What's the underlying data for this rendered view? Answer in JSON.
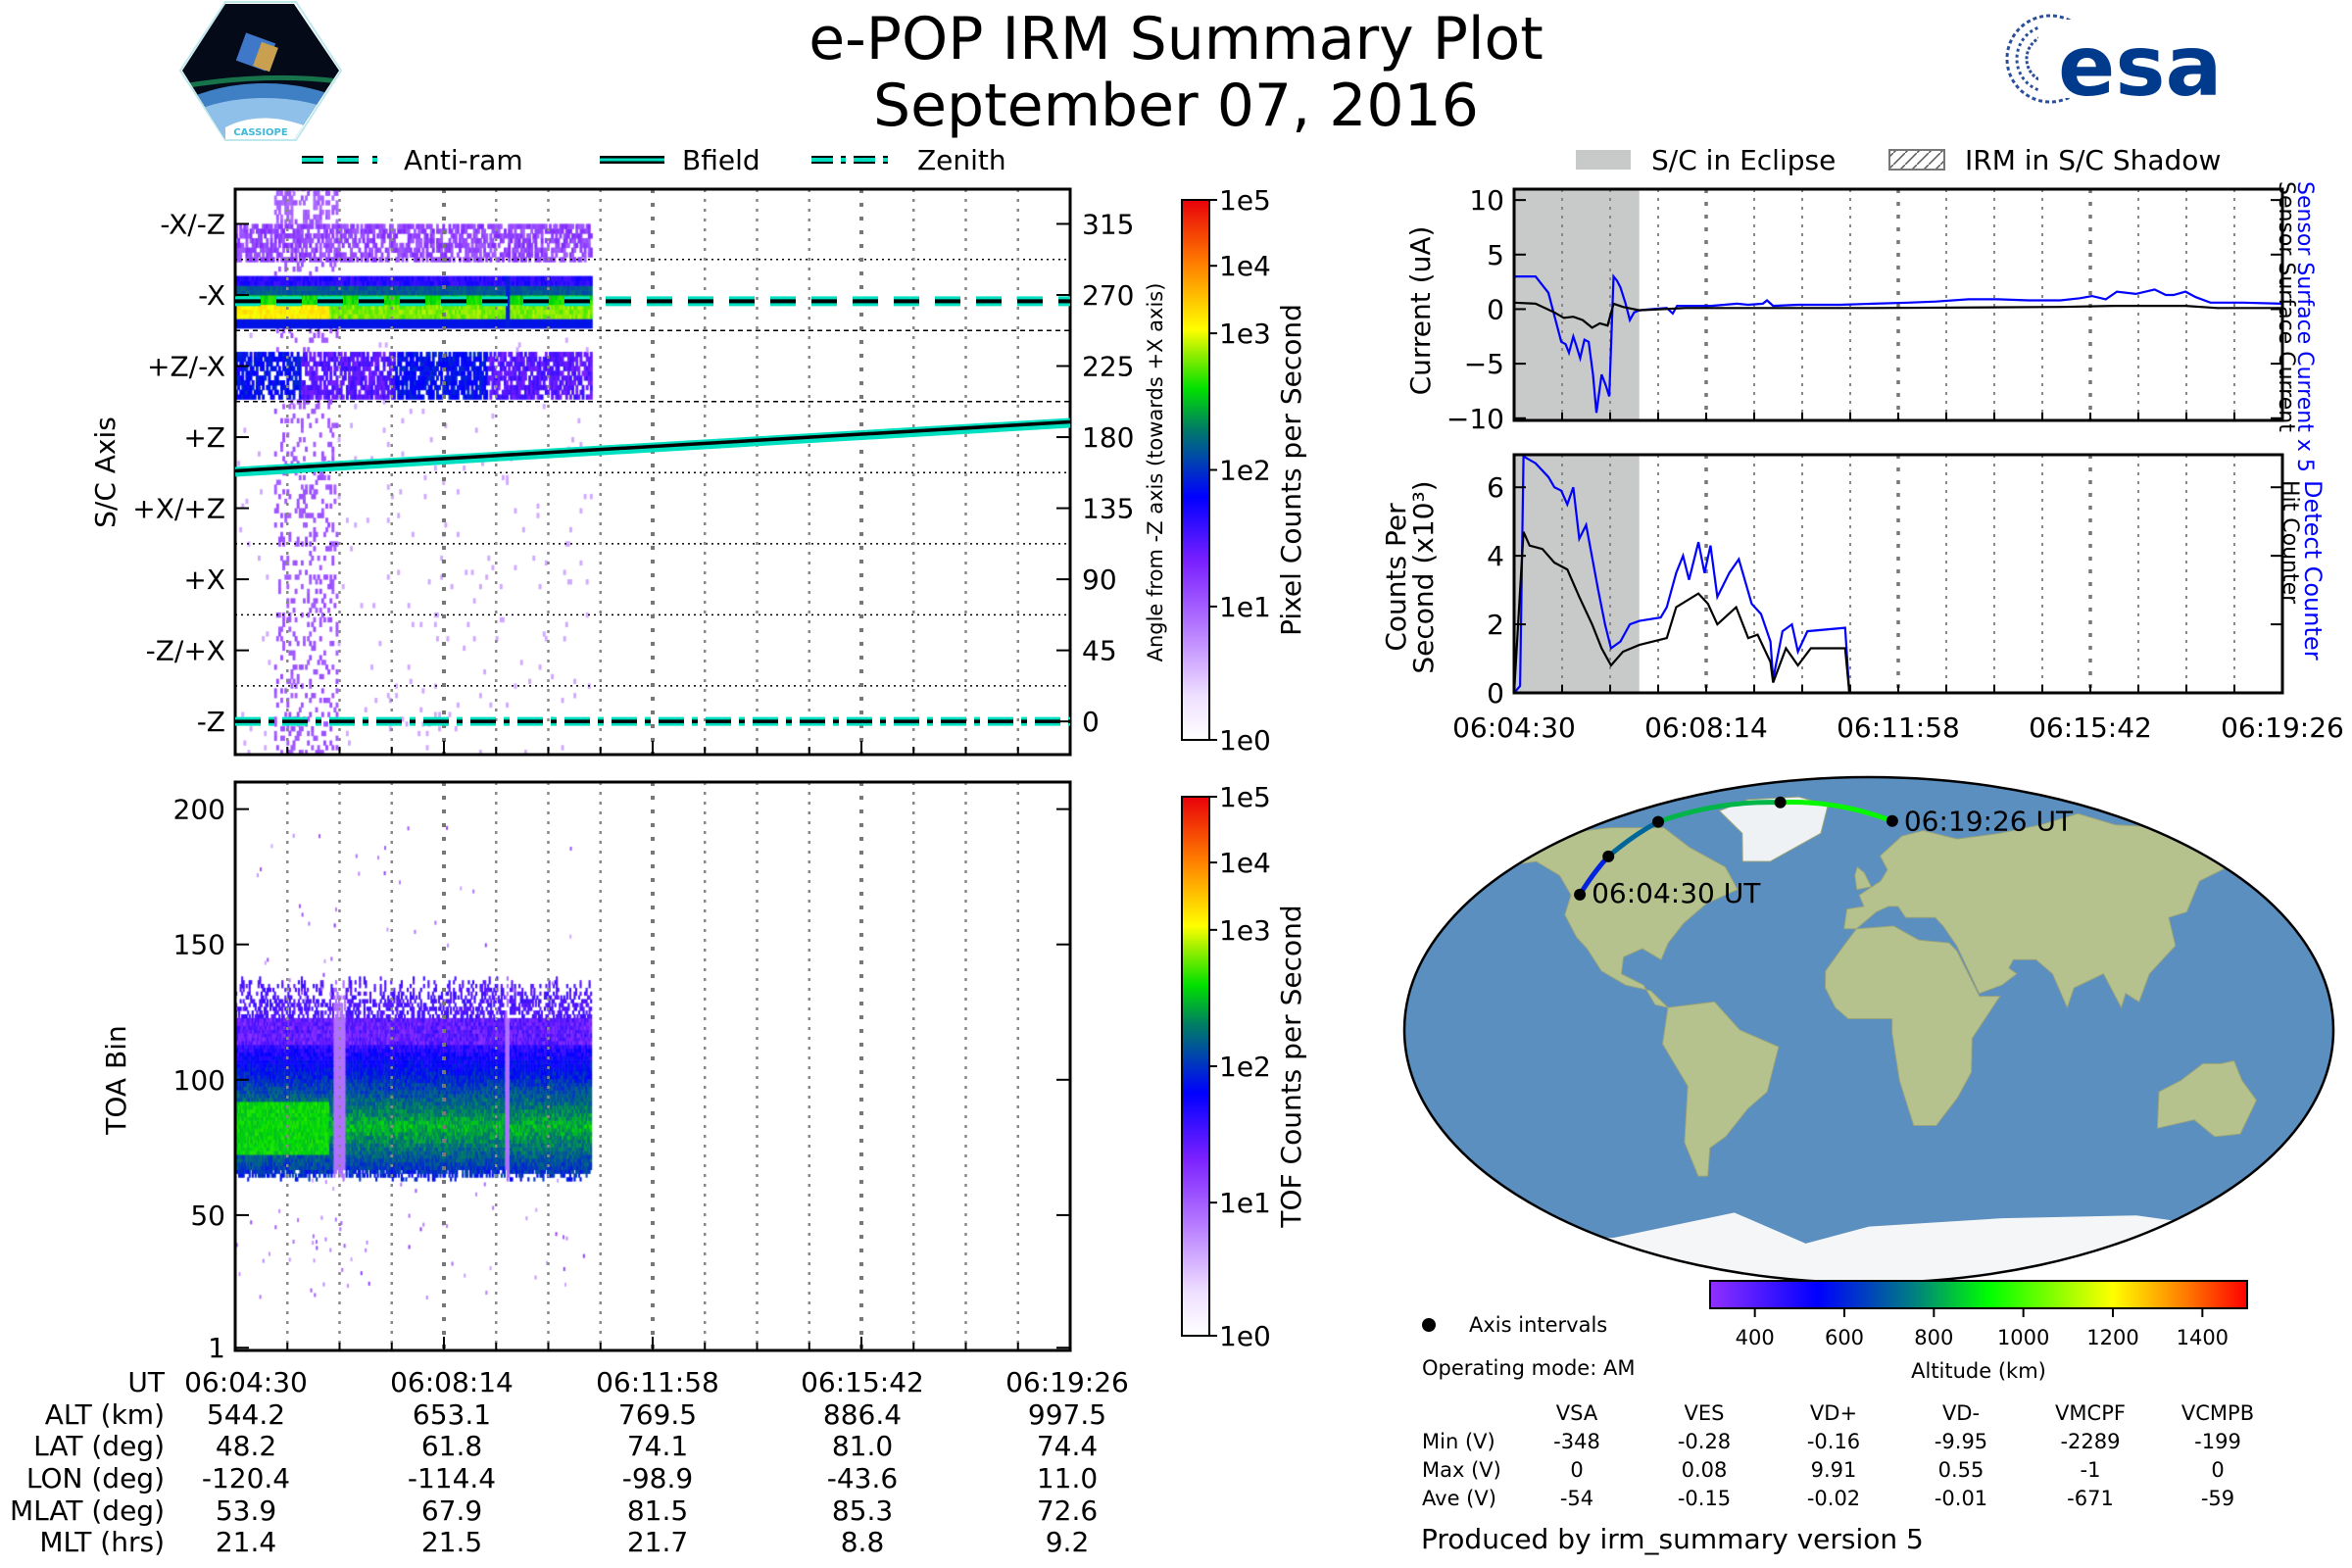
{
  "header": {
    "title": "e-POP IRM Summary Plot",
    "date": "September 07, 2016",
    "logo_left_text": "CASSIOPE",
    "logo_right_text": "esa"
  },
  "legend_left": [
    {
      "label": "Anti-ram",
      "style": "dashed"
    },
    {
      "label": "Bfield",
      "style": "solid"
    },
    {
      "label": "Zenith",
      "style": "dashdot"
    }
  ],
  "legend_right": [
    {
      "label": "S/C in Eclipse"
    },
    {
      "label": "IRM in S/C Shadow"
    }
  ],
  "colors": {
    "axis_line": "#00e0c0",
    "sensor_blue": "#0000ff",
    "eclipse_gray": "#c8cac9",
    "ocean": "#5a8fbf",
    "land": "#b6c28e"
  },
  "chart_data": [
    {
      "type": "heatmap",
      "name": "pixel-spectrogram",
      "ylabel": "S/C Axis",
      "y2label": "Angle from -Z axis (towards +X axis)",
      "yticks": [
        315,
        270,
        225,
        180,
        135,
        90,
        45,
        0
      ],
      "ytick_labels": [
        "-X/-Z",
        "-X",
        "+Z/-X",
        "+Z",
        "+X/+Z",
        "+X",
        "-Z/+X",
        "-Z"
      ],
      "y2tick_labels": [
        "315",
        "270",
        "225",
        "180",
        "135",
        "90",
        "45",
        "0"
      ],
      "ylim": [
        -21,
        337
      ],
      "xlim_s": [
        0,
        896
      ],
      "data_end_s": 381,
      "anti_ram_deg": 266,
      "bfield_deg": [
        [
          0,
          158
        ],
        [
          896,
          189
        ]
      ],
      "zenith_deg": 0,
      "colorbar": {
        "label": "Pixel Counts per Second",
        "ticks": [
          "1e5",
          "1e4",
          "1e3",
          "1e2",
          "1e1",
          "1e0"
        ]
      }
    },
    {
      "type": "heatmap",
      "name": "toa-spectrogram",
      "ylabel": "TOA Bin",
      "yticks": [
        200,
        150,
        100,
        50,
        1
      ],
      "ytick_labels": [
        "200",
        "150",
        "100",
        "50",
        "1"
      ],
      "ylim": [
        0,
        210
      ],
      "xlim_s": [
        0,
        896
      ],
      "data_end_s": 381,
      "colorbar": {
        "label": "TOF Counts per Second",
        "ticks": [
          "1e5",
          "1e4",
          "1e3",
          "1e2",
          "1e1",
          "1e0"
        ]
      }
    },
    {
      "type": "line",
      "name": "current",
      "ylabel": "Current (uA)",
      "ylim": [
        -10.2,
        11
      ],
      "yticks": [
        10,
        5,
        0,
        -5,
        -10
      ],
      "ytick_labels": [
        "10",
        "5",
        "0",
        "−5",
        "−10"
      ],
      "eclipse_s": [
        0,
        146
      ],
      "series": [
        {
          "name": "Sensor Surface Current x 5",
          "color": "#0000ff",
          "points": [
            [
              0,
              2.9
            ],
            [
              2,
              3
            ],
            [
              25,
              3
            ],
            [
              40,
              1.5
            ],
            [
              55,
              -3
            ],
            [
              60,
              -3.2
            ],
            [
              64,
              -4
            ],
            [
              69,
              -2.5
            ],
            [
              72,
              -3.2
            ],
            [
              77,
              -4.5
            ],
            [
              82,
              -2.8
            ],
            [
              87,
              -3
            ],
            [
              92,
              -6
            ],
            [
              96,
              -9.5
            ],
            [
              102,
              -6
            ],
            [
              107,
              -7
            ],
            [
              111,
              -8
            ],
            [
              116,
              3
            ],
            [
              120,
              2.6
            ],
            [
              124,
              2
            ],
            [
              130,
              0.5
            ],
            [
              135,
              -1
            ],
            [
              140,
              -0.3
            ],
            [
              146,
              -0.1
            ],
            [
              160,
              0
            ],
            [
              178,
              0.1
            ],
            [
              185,
              -0.4
            ],
            [
              190,
              0.3
            ],
            [
              200,
              0.3
            ],
            [
              230,
              0.3
            ],
            [
              260,
              0.5
            ],
            [
              273,
              0.4
            ],
            [
              290,
              0.5
            ],
            [
              295,
              0.8
            ],
            [
              302,
              0.3
            ],
            [
              331,
              0.4
            ],
            [
              380,
              0.4
            ],
            [
              419,
              0.5
            ],
            [
              460,
              0.6
            ],
            [
              492,
              0.7
            ],
            [
              530,
              0.9
            ],
            [
              564,
              0.9
            ],
            [
              600,
              0.8
            ],
            [
              637,
              0.8
            ],
            [
              660,
              1
            ],
            [
              674,
              1.2
            ],
            [
              690,
              0.9
            ],
            [
              703,
              1.6
            ],
            [
              725,
              1.4
            ],
            [
              747,
              1.8
            ],
            [
              760,
              1.3
            ],
            [
              769,
              1.3
            ],
            [
              783,
              1.6
            ],
            [
              795,
              1.1
            ],
            [
              812,
              0.6
            ],
            [
              850,
              0.6
            ],
            [
              896,
              0.5
            ]
          ]
        },
        {
          "name": "Sensor Surface Current",
          "color": "#000000",
          "points": [
            [
              0,
              0.6
            ],
            [
              25,
              0.5
            ],
            [
              47,
              -0.3
            ],
            [
              58,
              -0.8
            ],
            [
              69,
              -0.7
            ],
            [
              80,
              -1
            ],
            [
              91,
              -1.7
            ],
            [
              100,
              -1.3
            ],
            [
              109,
              -1.5
            ],
            [
              116,
              0.5
            ],
            [
              127,
              0.2
            ],
            [
              146,
              -0.1
            ],
            [
              200,
              0.1
            ],
            [
              419,
              0.1
            ],
            [
              637,
              0.2
            ],
            [
              700,
              0.3
            ],
            [
              783,
              0.3
            ],
            [
              820,
              0.1
            ],
            [
              896,
              0.1
            ]
          ]
        }
      ]
    },
    {
      "type": "line",
      "name": "counts",
      "ylabel": [
        "Counts Per",
        "Second (x10³)"
      ],
      "ylim": [
        0,
        6.95
      ],
      "yticks": [
        6,
        4,
        2,
        0
      ],
      "ytick_labels": [
        "6",
        "4",
        "2",
        "0"
      ],
      "eclipse_s": [
        0,
        146
      ],
      "series": [
        {
          "name": "Detect Counter",
          "color": "#0000ff",
          "points": [
            [
              0,
              0
            ],
            [
              7,
              0.2
            ],
            [
              11,
              6.9
            ],
            [
              25,
              6.7
            ],
            [
              40,
              6.3
            ],
            [
              47,
              6
            ],
            [
              55,
              5.9
            ],
            [
              62,
              5.5
            ],
            [
              69,
              6
            ],
            [
              76,
              4.5
            ],
            [
              84,
              4.9
            ],
            [
              98,
              3
            ],
            [
              106,
              2
            ],
            [
              113,
              1.3
            ],
            [
              124,
              1.5
            ],
            [
              135,
              2
            ],
            [
              146,
              2.1
            ],
            [
              171,
              2.2
            ],
            [
              178,
              2.5
            ],
            [
              189,
              3.5
            ],
            [
              197,
              4
            ],
            [
              204,
              3.3
            ],
            [
              215,
              4.4
            ],
            [
              222,
              3.5
            ],
            [
              229,
              4.3
            ],
            [
              237,
              2.8
            ],
            [
              251,
              3.5
            ],
            [
              262,
              3.9
            ],
            [
              277,
              2.6
            ],
            [
              288,
              2.3
            ],
            [
              299,
              1.5
            ],
            [
              302,
              0.4
            ],
            [
              313,
              1.8
            ],
            [
              324,
              2
            ],
            [
              331,
              1.2
            ],
            [
              342,
              1.8
            ],
            [
              386,
              1.9
            ],
            [
              391,
              0
            ],
            [
              896,
              0
            ]
          ]
        },
        {
          "name": "Hit Counter",
          "color": "#000000",
          "points": [
            [
              0,
              0
            ],
            [
              11,
              4.7
            ],
            [
              18,
              4.3
            ],
            [
              33,
              4.2
            ],
            [
              47,
              3.8
            ],
            [
              62,
              3.6
            ],
            [
              76,
              2.8
            ],
            [
              91,
              2
            ],
            [
              102,
              1.3
            ],
            [
              113,
              0.8
            ],
            [
              127,
              1.2
            ],
            [
              146,
              1.4
            ],
            [
              178,
              1.6
            ],
            [
              189,
              2.5
            ],
            [
              215,
              2.9
            ],
            [
              226,
              2.6
            ],
            [
              237,
              2
            ],
            [
              259,
              2.5
            ],
            [
              273,
              1.6
            ],
            [
              284,
              1.7
            ],
            [
              299,
              0.9
            ],
            [
              302,
              0.3
            ],
            [
              317,
              1.3
            ],
            [
              331,
              0.8
            ],
            [
              346,
              1.3
            ],
            [
              386,
              1.3
            ],
            [
              391,
              0
            ],
            [
              896,
              0
            ]
          ]
        }
      ]
    }
  ],
  "time_axis": {
    "labels": [
      "06:04:30",
      "06:08:14",
      "06:11:58",
      "06:15:42",
      "06:19:26"
    ],
    "seconds": [
      0,
      224,
      448,
      672,
      896
    ]
  },
  "ephemeris": {
    "rows": [
      {
        "label": "UT",
        "values": [
          "06:04:30",
          "06:08:14",
          "06:11:58",
          "06:15:42",
          "06:19:26"
        ]
      },
      {
        "label": "ALT (km)",
        "values": [
          "544.2",
          "653.1",
          "769.5",
          "886.4",
          "997.5"
        ]
      },
      {
        "label": "LAT (deg)",
        "values": [
          "48.2",
          "61.8",
          "74.1",
          "81.0",
          "74.4"
        ]
      },
      {
        "label": "LON (deg)",
        "values": [
          "-120.4",
          "-114.4",
          "-98.9",
          "-43.6",
          "11.0"
        ]
      },
      {
        "label": "MLAT (deg)",
        "values": [
          "53.9",
          "67.9",
          "81.5",
          "85.3",
          "72.6"
        ]
      },
      {
        "label": "MLT (hrs)",
        "values": [
          "21.4",
          "21.5",
          "21.7",
          "8.8",
          "9.2"
        ]
      }
    ]
  },
  "map": {
    "start_label": "06:04:30 UT",
    "end_label": "06:19:26 UT",
    "legend_label": "Axis intervals",
    "colorbar_label": "Altitude (km)",
    "colorbar_ticks": [
      "400",
      "600",
      "800",
      "1000",
      "1200",
      "1400"
    ],
    "colorbar_range_km": [
      300,
      1500
    ]
  },
  "stats": {
    "operating_mode": "Operating mode: AM",
    "columns": [
      "VSA",
      "VES",
      "VD+",
      "VD-",
      "VMCPF",
      "VCMPB"
    ],
    "rows": [
      {
        "label": "Min (V)",
        "values": [
          "-348",
          "-0.28",
          "-0.16",
          "-9.95",
          "-2289",
          "-199"
        ]
      },
      {
        "label": "Max (V)",
        "values": [
          "0",
          "0.08",
          "9.91",
          "0.55",
          "-1",
          "0"
        ]
      },
      {
        "label": "Ave (V)",
        "values": [
          "-54",
          "-0.15",
          "-0.02",
          "-0.01",
          "-671",
          "-59"
        ]
      }
    ]
  },
  "footer": "Produced by irm_summary version 5"
}
